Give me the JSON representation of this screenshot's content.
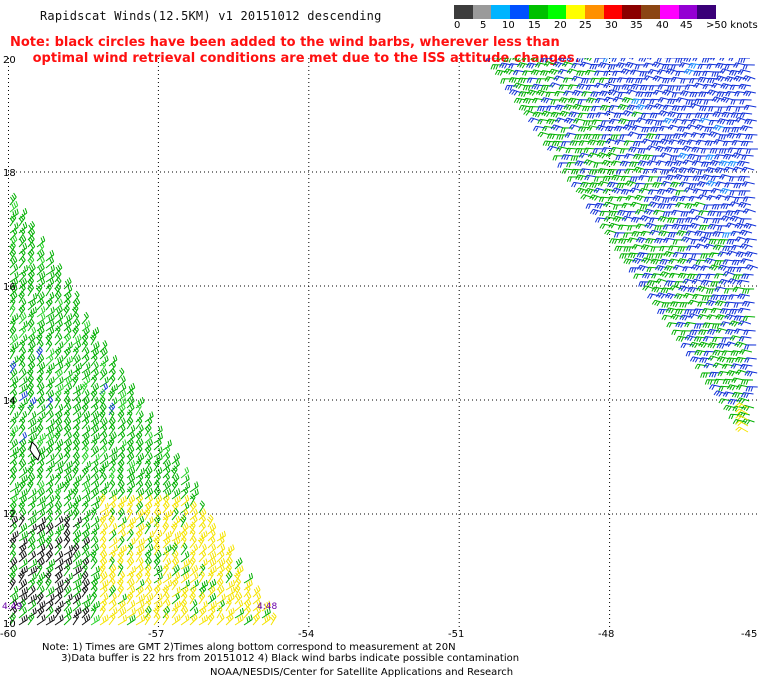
{
  "header": {
    "title": "Rapidscat Winds(12.5KM) v1 20151012 descending",
    "note_line1": "Note: black circles have been added to the wind barbs, wherever less than",
    "note_line2": "     optimal wind retrieval conditions are met due to the ISS attitude changes."
  },
  "scale": {
    "labels": [
      "0",
      "5",
      "10",
      "15",
      "20",
      "25",
      "30",
      "35",
      "40",
      "45",
      ">50 knots"
    ],
    "colors": [
      "#3c3c3c",
      "#9a9a9a",
      "#00b4ff",
      "#0050ff",
      "#00c000",
      "#00ff00",
      "#ffff00",
      "#ff9000",
      "#ff0000",
      "#8b0000",
      "#8b4513",
      "#ff00ff",
      "#9400d3",
      "#3a0078"
    ]
  },
  "map": {
    "lat_labels": [
      "20",
      "18",
      "16",
      "14",
      "12",
      "10"
    ],
    "lon_labels": [
      "-60",
      "-57",
      "-54",
      "-51",
      "-48",
      "-45"
    ],
    "time_labels": [
      "4:49",
      "4:48"
    ]
  },
  "footer": {
    "line1": "Note: 1) Times are GMT 2)Times along bottom correspond to measurement at 20N",
    "line2": "      3)Data buffer is 22 hrs from 20151012 4) Black wind barbs indicate possible contamination",
    "line3": "NOAA/NESDIS/Center for Satellite Applications and Research"
  }
}
